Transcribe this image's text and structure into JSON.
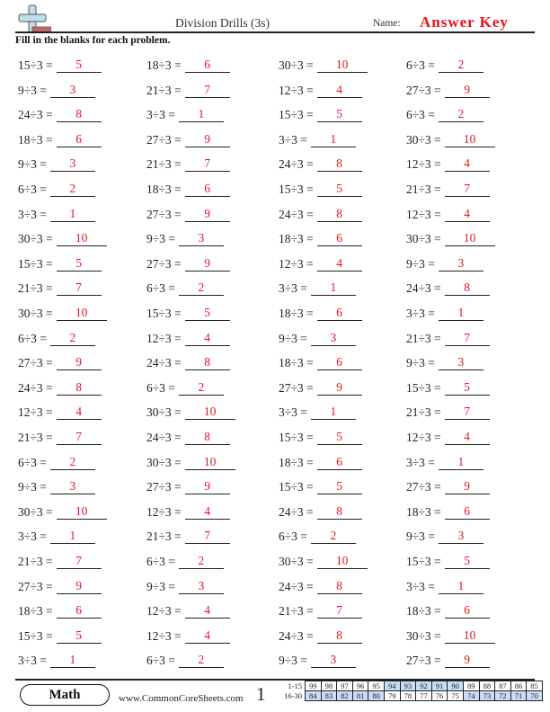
{
  "header": {
    "title": "Division Drills (3s)",
    "name_label": "Name:",
    "name_value": "Answer Key",
    "instructions": "Fill in the blanks for each problem."
  },
  "colors": {
    "answer": "#e8131f",
    "logo_plus": "#bfe0ea",
    "logo_bar": "#c0686a",
    "score_highlight": "#c8dcf6"
  },
  "problems": {
    "columns": [
      [
        {
          "q": "15÷3 =",
          "a": "5"
        },
        {
          "q": "9÷3 =",
          "a": "3"
        },
        {
          "q": "24÷3 =",
          "a": "8"
        },
        {
          "q": "18÷3 =",
          "a": "6"
        },
        {
          "q": "9÷3 =",
          "a": "3"
        },
        {
          "q": "6÷3 =",
          "a": "2"
        },
        {
          "q": "3÷3 =",
          "a": "1"
        },
        {
          "q": "30÷3 =",
          "a": "10"
        },
        {
          "q": "15÷3 =",
          "a": "5"
        },
        {
          "q": "21÷3 =",
          "a": "7"
        },
        {
          "q": "30÷3 =",
          "a": "10"
        },
        {
          "q": "6÷3 =",
          "a": "2"
        },
        {
          "q": "27÷3 =",
          "a": "9"
        },
        {
          "q": "24÷3 =",
          "a": "8"
        },
        {
          "q": "12÷3 =",
          "a": "4"
        },
        {
          "q": "21÷3 =",
          "a": "7"
        },
        {
          "q": "6÷3 =",
          "a": "2"
        },
        {
          "q": "9÷3 =",
          "a": "3"
        },
        {
          "q": "30÷3 =",
          "a": "10"
        },
        {
          "q": "3÷3 =",
          "a": "1"
        },
        {
          "q": "21÷3 =",
          "a": "7"
        },
        {
          "q": "27÷3 =",
          "a": "9"
        },
        {
          "q": "18÷3 =",
          "a": "6"
        },
        {
          "q": "15÷3 =",
          "a": "5"
        },
        {
          "q": "3÷3 =",
          "a": "1"
        }
      ],
      [
        {
          "q": "18÷3 =",
          "a": "6"
        },
        {
          "q": "21÷3 =",
          "a": "7"
        },
        {
          "q": "3÷3 =",
          "a": "1"
        },
        {
          "q": "27÷3 =",
          "a": "9"
        },
        {
          "q": "21÷3 =",
          "a": "7"
        },
        {
          "q": "18÷3 =",
          "a": "6"
        },
        {
          "q": "27÷3 =",
          "a": "9"
        },
        {
          "q": "9÷3 =",
          "a": "3"
        },
        {
          "q": "27÷3 =",
          "a": "9"
        },
        {
          "q": "6÷3 =",
          "a": "2"
        },
        {
          "q": "15÷3 =",
          "a": "5"
        },
        {
          "q": "12÷3 =",
          "a": "4"
        },
        {
          "q": "24÷3 =",
          "a": "8"
        },
        {
          "q": "6÷3 =",
          "a": "2"
        },
        {
          "q": "30÷3 =",
          "a": "10"
        },
        {
          "q": "24÷3 =",
          "a": "8"
        },
        {
          "q": "30÷3 =",
          "a": "10"
        },
        {
          "q": "27÷3 =",
          "a": "9"
        },
        {
          "q": "12÷3 =",
          "a": "4"
        },
        {
          "q": "21÷3 =",
          "a": "7"
        },
        {
          "q": "6÷3 =",
          "a": "2"
        },
        {
          "q": "9÷3 =",
          "a": "3"
        },
        {
          "q": "12÷3 =",
          "a": "4"
        },
        {
          "q": "12÷3 =",
          "a": "4"
        },
        {
          "q": "6÷3 =",
          "a": "2"
        }
      ],
      [
        {
          "q": "30÷3 =",
          "a": "10"
        },
        {
          "q": "12÷3 =",
          "a": "4"
        },
        {
          "q": "15÷3 =",
          "a": "5"
        },
        {
          "q": "3÷3 =",
          "a": "1"
        },
        {
          "q": "24÷3 =",
          "a": "8"
        },
        {
          "q": "15÷3 =",
          "a": "5"
        },
        {
          "q": "24÷3 =",
          "a": "8"
        },
        {
          "q": "18÷3 =",
          "a": "6"
        },
        {
          "q": "12÷3 =",
          "a": "4"
        },
        {
          "q": "3÷3 =",
          "a": "1"
        },
        {
          "q": "18÷3 =",
          "a": "6"
        },
        {
          "q": "9÷3 =",
          "a": "3"
        },
        {
          "q": "18÷3 =",
          "a": "6"
        },
        {
          "q": "27÷3 =",
          "a": "9"
        },
        {
          "q": "3÷3 =",
          "a": "1"
        },
        {
          "q": "15÷3 =",
          "a": "5"
        },
        {
          "q": "18÷3 =",
          "a": "6"
        },
        {
          "q": "15÷3 =",
          "a": "5"
        },
        {
          "q": "24÷3 =",
          "a": "8"
        },
        {
          "q": "6÷3 =",
          "a": "2"
        },
        {
          "q": "30÷3 =",
          "a": "10"
        },
        {
          "q": "24÷3 =",
          "a": "8"
        },
        {
          "q": "21÷3 =",
          "a": "7"
        },
        {
          "q": "24÷3 =",
          "a": "8"
        },
        {
          "q": "9÷3 =",
          "a": "3"
        }
      ],
      [
        {
          "q": "6÷3 =",
          "a": "2"
        },
        {
          "q": "27÷3 =",
          "a": "9"
        },
        {
          "q": "6÷3 =",
          "a": "2"
        },
        {
          "q": "30÷3 =",
          "a": "10"
        },
        {
          "q": "12÷3 =",
          "a": "4"
        },
        {
          "q": "21÷3 =",
          "a": "7"
        },
        {
          "q": "12÷3 =",
          "a": "4"
        },
        {
          "q": "30÷3 =",
          "a": "10"
        },
        {
          "q": "9÷3 =",
          "a": "3"
        },
        {
          "q": "24÷3 =",
          "a": "8"
        },
        {
          "q": "3÷3 =",
          "a": "1"
        },
        {
          "q": "21÷3 =",
          "a": "7"
        },
        {
          "q": "9÷3 =",
          "a": "3"
        },
        {
          "q": "15÷3 =",
          "a": "5"
        },
        {
          "q": "21÷3 =",
          "a": "7"
        },
        {
          "q": "12÷3 =",
          "a": "4"
        },
        {
          "q": "3÷3 =",
          "a": "1"
        },
        {
          "q": "27÷3 =",
          "a": "9"
        },
        {
          "q": "18÷3 =",
          "a": "6"
        },
        {
          "q": "9÷3 =",
          "a": "3"
        },
        {
          "q": "15÷3 =",
          "a": "5"
        },
        {
          "q": "3÷3 =",
          "a": "1"
        },
        {
          "q": "18÷3 =",
          "a": "6"
        },
        {
          "q": "30÷3 =",
          "a": "10"
        },
        {
          "q": "27÷3 =",
          "a": "9"
        }
      ]
    ]
  },
  "footer": {
    "subject": "Math",
    "site": "www.CommonCoreSheets.com",
    "page": "1",
    "score_table": {
      "rows": [
        {
          "label": "1-15",
          "values": [
            "99",
            "98",
            "97",
            "96",
            "95",
            "94",
            "93",
            "92",
            "91",
            "90",
            "89",
            "88",
            "87",
            "86",
            "85"
          ],
          "highlight": [
            false,
            false,
            false,
            false,
            false,
            true,
            true,
            true,
            true,
            true,
            false,
            false,
            false,
            false,
            false
          ]
        },
        {
          "label": "16-30",
          "values": [
            "84",
            "83",
            "82",
            "81",
            "80",
            "79",
            "78",
            "77",
            "76",
            "75",
            "74",
            "73",
            "72",
            "71",
            "70"
          ],
          "highlight": [
            true,
            true,
            true,
            true,
            true,
            false,
            false,
            false,
            false,
            false,
            true,
            true,
            true,
            true,
            true
          ]
        }
      ]
    }
  }
}
